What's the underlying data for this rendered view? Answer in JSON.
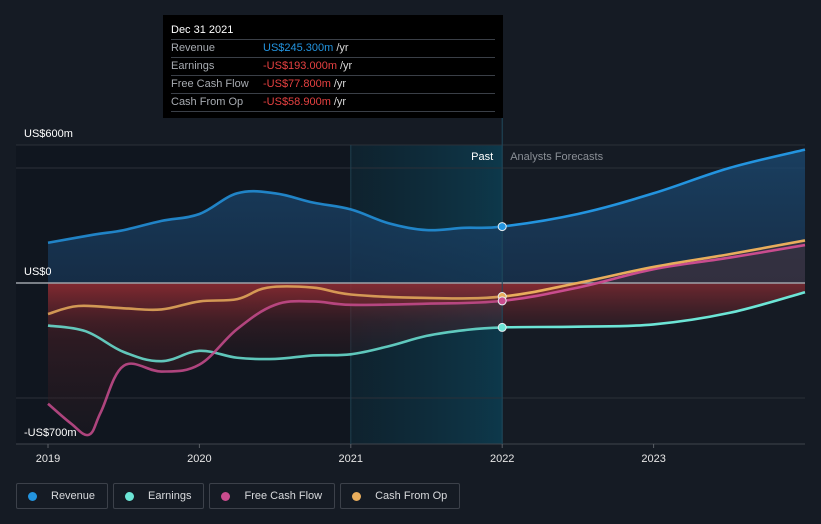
{
  "tooltip": {
    "date": "Dec 31 2021",
    "rows": [
      {
        "label": "Revenue",
        "value": "US$245.300m",
        "unit": "/yr",
        "color": "#2394df"
      },
      {
        "label": "Earnings",
        "value": "-US$193.000m",
        "unit": "/yr",
        "color": "#e64141"
      },
      {
        "label": "Free Cash Flow",
        "value": "-US$77.800m",
        "unit": "/yr",
        "color": "#e64141"
      },
      {
        "label": "Cash From Op",
        "value": "-US$58.900m",
        "unit": "/yr",
        "color": "#e64141"
      }
    ]
  },
  "legend": [
    {
      "label": "Revenue",
      "color": "#2394df"
    },
    {
      "label": "Earnings",
      "color": "#6ce5d6"
    },
    {
      "label": "Free Cash Flow",
      "color": "#c94c8e"
    },
    {
      "label": "Cash From Op",
      "color": "#e8ad5c"
    }
  ],
  "chart_data": {
    "type": "line",
    "title": "",
    "xlabel": "",
    "ylabel": "",
    "ylim": [
      -700,
      600
    ],
    "xlim": [
      2019,
      2024
    ],
    "y_tick_labels": [
      {
        "value": 600,
        "label": "US$600m"
      },
      {
        "value": 0,
        "label": "US$0"
      },
      {
        "value": -700,
        "label": "-US$700m"
      }
    ],
    "gridlines": [
      600,
      500,
      0,
      -500,
      -700
    ],
    "x_tick_labels": [
      {
        "value": 2019,
        "label": "2019"
      },
      {
        "value": 2020,
        "label": "2020"
      },
      {
        "value": 2021,
        "label": "2021"
      },
      {
        "value": 2022,
        "label": "2022"
      },
      {
        "value": 2023,
        "label": "2023"
      }
    ],
    "past_label": "Past",
    "forecast_label": "Analysts Forecasts",
    "split_x": 2022,
    "highlight_start": 2021,
    "series": [
      {
        "name": "Revenue",
        "color": "#2394df",
        "points": [
          [
            2019.0,
            175
          ],
          [
            2019.3,
            210
          ],
          [
            2019.5,
            230
          ],
          [
            2019.75,
            270
          ],
          [
            2020.0,
            300
          ],
          [
            2020.25,
            390
          ],
          [
            2020.5,
            390
          ],
          [
            2020.75,
            350
          ],
          [
            2021.0,
            320
          ],
          [
            2021.25,
            260
          ],
          [
            2021.5,
            230
          ],
          [
            2021.75,
            240
          ],
          [
            2022.0,
            245.3
          ],
          [
            2022.5,
            300
          ],
          [
            2023.0,
            390
          ],
          [
            2023.5,
            500
          ],
          [
            2024.0,
            580
          ]
        ]
      },
      {
        "name": "Earnings",
        "color": "#6ce5d6",
        "points": [
          [
            2019.0,
            -185
          ],
          [
            2019.25,
            -210
          ],
          [
            2019.5,
            -300
          ],
          [
            2019.75,
            -340
          ],
          [
            2020.0,
            -295
          ],
          [
            2020.25,
            -325
          ],
          [
            2020.5,
            -330
          ],
          [
            2020.75,
            -315
          ],
          [
            2021.0,
            -310
          ],
          [
            2021.25,
            -275
          ],
          [
            2021.5,
            -230
          ],
          [
            2021.75,
            -205
          ],
          [
            2022.0,
            -193
          ],
          [
            2022.5,
            -190
          ],
          [
            2023.0,
            -180
          ],
          [
            2023.5,
            -130
          ],
          [
            2024.0,
            -40
          ]
        ]
      },
      {
        "name": "Free Cash Flow",
        "color": "#c94c8e",
        "points": [
          [
            2019.0,
            -525
          ],
          [
            2019.15,
            -610
          ],
          [
            2019.27,
            -660
          ],
          [
            2019.35,
            -560
          ],
          [
            2019.5,
            -360
          ],
          [
            2019.75,
            -385
          ],
          [
            2020.0,
            -355
          ],
          [
            2020.25,
            -200
          ],
          [
            2020.5,
            -95
          ],
          [
            2020.75,
            -80
          ],
          [
            2021.0,
            -95
          ],
          [
            2021.5,
            -90
          ],
          [
            2022.0,
            -77.8
          ],
          [
            2022.5,
            -20
          ],
          [
            2023.0,
            60
          ],
          [
            2023.5,
            110
          ],
          [
            2024.0,
            165
          ]
        ]
      },
      {
        "name": "Cash From Op",
        "color": "#e8ad5c",
        "points": [
          [
            2019.0,
            -135
          ],
          [
            2019.2,
            -100
          ],
          [
            2019.5,
            -110
          ],
          [
            2019.75,
            -115
          ],
          [
            2020.0,
            -80
          ],
          [
            2020.25,
            -70
          ],
          [
            2020.45,
            -20
          ],
          [
            2020.75,
            -20
          ],
          [
            2021.0,
            -50
          ],
          [
            2021.5,
            -65
          ],
          [
            2022.0,
            -58.9
          ],
          [
            2022.5,
            0
          ],
          [
            2023.0,
            70
          ],
          [
            2023.5,
            125
          ],
          [
            2024.0,
            185
          ]
        ]
      }
    ]
  }
}
